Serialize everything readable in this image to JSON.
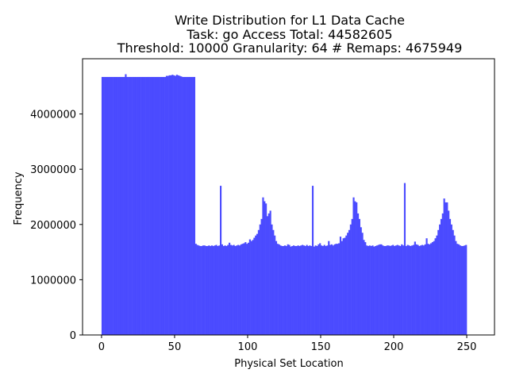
{
  "chart_data": {
    "type": "bar",
    "title_lines": [
      "Write Distribution for L1 Data Cache",
      "Task: go Access Total: 44582605",
      "Threshold: 10000 Granularity: 64 # Remaps: 4675949"
    ],
    "xlabel": "Physical Set Location",
    "ylabel": "Frequency",
    "xlim": [
      -13,
      269
    ],
    "ylim": [
      0,
      5000000
    ],
    "x_ticks": [
      0,
      50,
      100,
      150,
      200,
      250
    ],
    "y_ticks": [
      0,
      1000000,
      2000000,
      3000000,
      4000000
    ],
    "x_tick_labels": [
      "0",
      "50",
      "100",
      "150",
      "200",
      "250"
    ],
    "y_tick_labels": [
      "0",
      "1000000",
      "2000000",
      "3000000",
      "4000000"
    ],
    "bar_color": "#4b4bff",
    "series": [
      {
        "values": [
          4670000,
          4670000,
          4670000,
          4670000,
          4670000,
          4670000,
          4670000,
          4670000,
          4670000,
          4670000,
          4670000,
          4670000,
          4670000,
          4670000,
          4670000,
          4670000,
          4720000,
          4670000,
          4670000,
          4670000,
          4670000,
          4670000,
          4670000,
          4670000,
          4670000,
          4670000,
          4670000,
          4670000,
          4670000,
          4670000,
          4670000,
          4670000,
          4670000,
          4670000,
          4670000,
          4670000,
          4670000,
          4670000,
          4670000,
          4670000,
          4670000,
          4670000,
          4670000,
          4670000,
          4690000,
          4690000,
          4700000,
          4700000,
          4710000,
          4700000,
          4690000,
          4710000,
          4700000,
          4690000,
          4680000,
          4670000,
          4670000,
          4670000,
          4670000,
          4670000,
          4670000,
          4670000,
          4670000,
          4670000,
          1650000,
          1630000,
          1620000,
          1610000,
          1610000,
          1620000,
          1620000,
          1610000,
          1610000,
          1620000,
          1610000,
          1620000,
          1610000,
          1620000,
          1630000,
          1610000,
          1620000,
          2700000,
          1640000,
          1610000,
          1620000,
          1610000,
          1630000,
          1670000,
          1630000,
          1620000,
          1630000,
          1610000,
          1620000,
          1630000,
          1620000,
          1640000,
          1650000,
          1660000,
          1680000,
          1650000,
          1670000,
          1730000,
          1700000,
          1720000,
          1760000,
          1800000,
          1830000,
          1900000,
          2000000,
          2100000,
          2490000,
          2420000,
          2380000,
          2150000,
          2200000,
          2250000,
          2000000,
          1900000,
          1800000,
          1700000,
          1650000,
          1640000,
          1620000,
          1610000,
          1610000,
          1620000,
          1610000,
          1640000,
          1630000,
          1600000,
          1610000,
          1620000,
          1610000,
          1610000,
          1620000,
          1610000,
          1620000,
          1630000,
          1620000,
          1610000,
          1630000,
          1610000,
          1620000,
          1610000,
          2700000,
          1600000,
          1620000,
          1610000,
          1640000,
          1660000,
          1620000,
          1610000,
          1630000,
          1610000,
          1620000,
          1700000,
          1630000,
          1640000,
          1620000,
          1640000,
          1650000,
          1650000,
          1660000,
          1780000,
          1700000,
          1750000,
          1760000,
          1800000,
          1850000,
          1900000,
          2000000,
          2100000,
          2490000,
          2420000,
          2400000,
          2200000,
          2100000,
          1950000,
          1850000,
          1720000,
          1680000,
          1620000,
          1610000,
          1620000,
          1610000,
          1620000,
          1600000,
          1610000,
          1620000,
          1630000,
          1640000,
          1640000,
          1620000,
          1610000,
          1610000,
          1620000,
          1620000,
          1610000,
          1620000,
          1630000,
          1610000,
          1620000,
          1630000,
          1620000,
          1610000,
          1640000,
          1620000,
          2750000,
          1610000,
          1630000,
          1620000,
          1610000,
          1620000,
          1630000,
          1690000,
          1640000,
          1630000,
          1610000,
          1620000,
          1630000,
          1620000,
          1640000,
          1750000,
          1650000,
          1640000,
          1660000,
          1680000,
          1700000,
          1750000,
          1800000,
          1900000,
          2000000,
          2100000,
          2200000,
          2470000,
          2400000,
          2400000,
          2250000,
          2100000,
          2000000,
          1900000,
          1800000,
          1700000,
          1650000,
          1640000,
          1620000,
          1610000,
          1610000,
          1620000,
          1630000
        ]
      }
    ]
  }
}
